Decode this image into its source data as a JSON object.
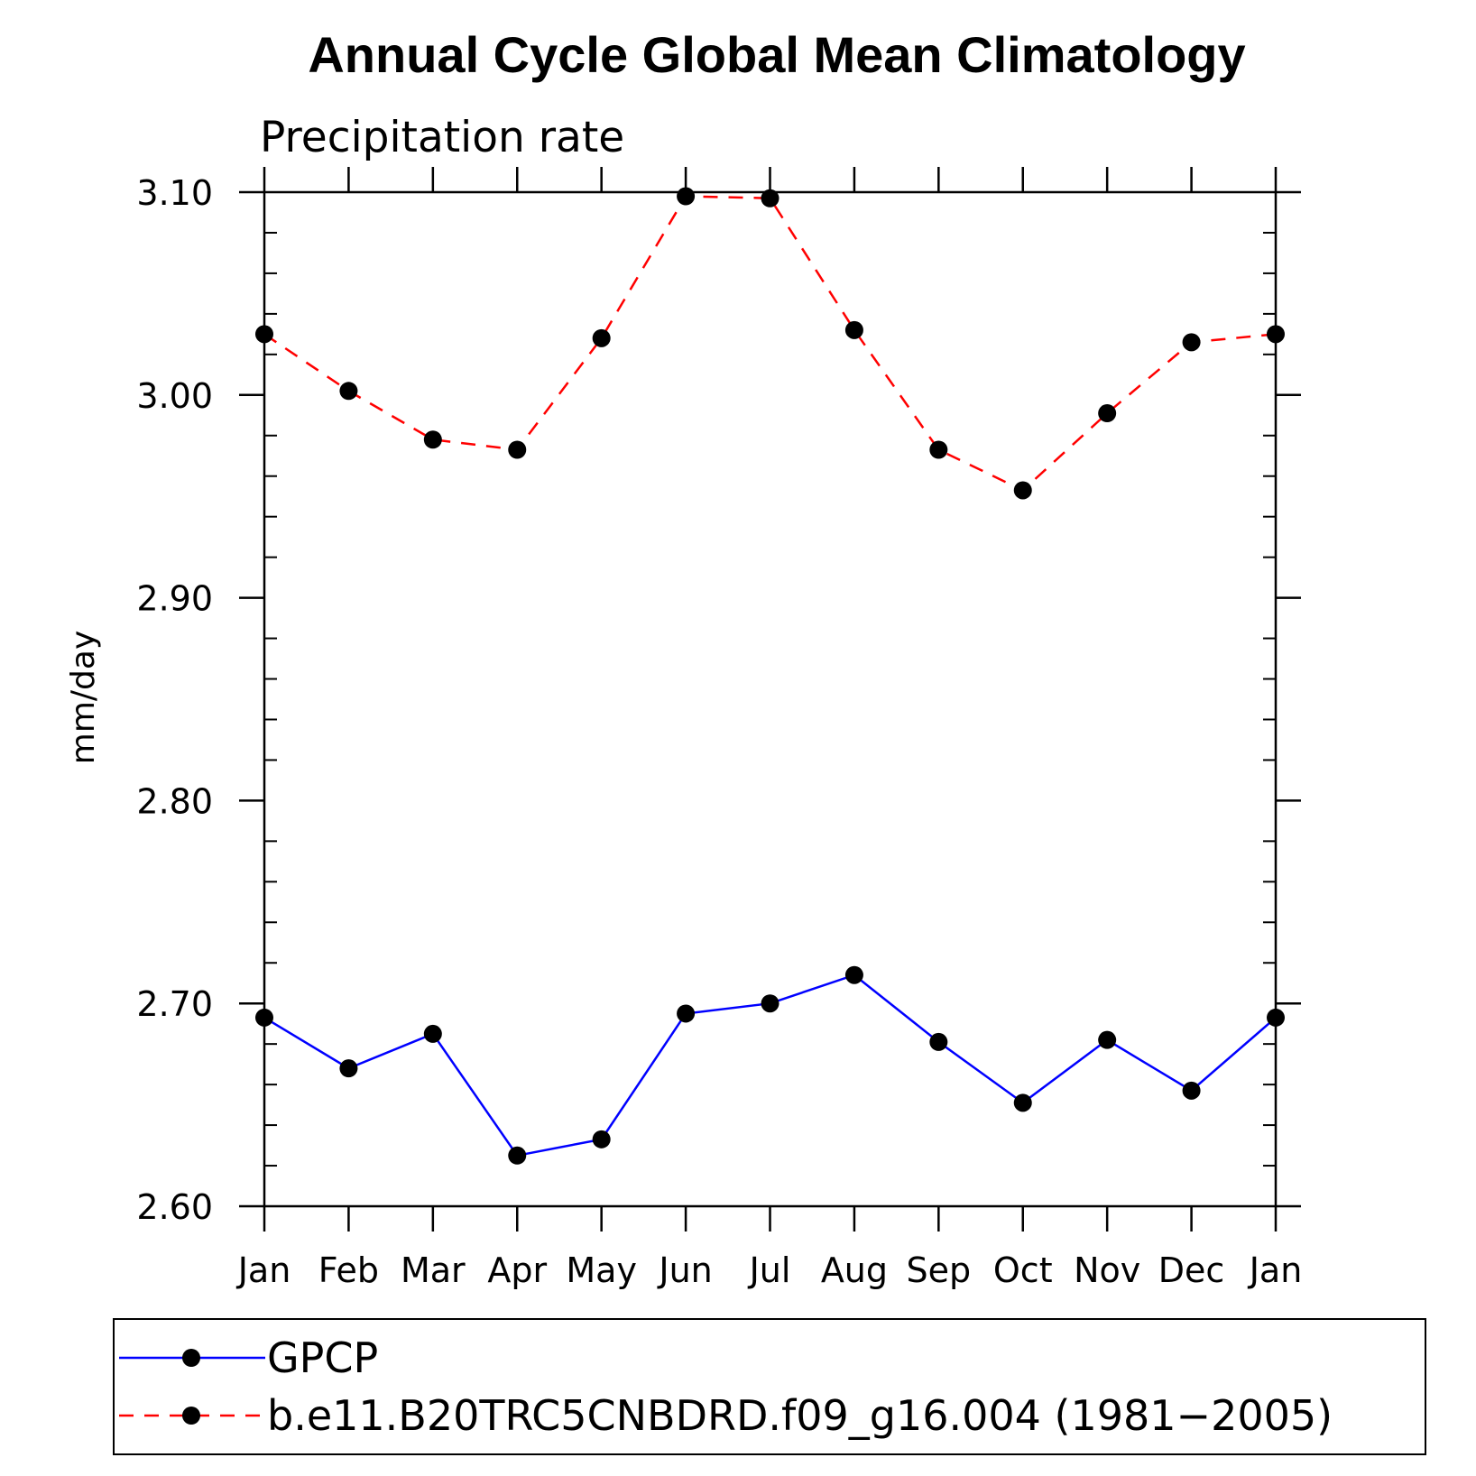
{
  "chart_data": {
    "type": "line",
    "title": "Annual Cycle Global Mean Climatology",
    "subtitle": "Precipitation rate",
    "ylabel": "mm/day",
    "xlabel": "",
    "categories": [
      "Jan",
      "Feb",
      "Mar",
      "Apr",
      "May",
      "Jun",
      "Jul",
      "Aug",
      "Sep",
      "Oct",
      "Nov",
      "Dec",
      "Jan"
    ],
    "ylim": [
      2.6,
      3.1
    ],
    "yticks": [
      "2.60",
      "2.70",
      "2.80",
      "2.90",
      "3.00",
      "3.10"
    ],
    "series": [
      {
        "name": "GPCP",
        "color": "#0000ff",
        "line_style": "solid",
        "marker": "filled-circle",
        "values": [
          2.693,
          2.668,
          2.685,
          2.625,
          2.633,
          2.695,
          2.7,
          2.714,
          2.681,
          2.651,
          2.682,
          2.657,
          2.693
        ]
      },
      {
        "name": "b.e11.B20TRC5CNBDRD.f09_g16.004 (1981−2005)",
        "color": "#ff0000",
        "line_style": "dashed",
        "marker": "filled-circle",
        "values": [
          3.03,
          3.002,
          2.978,
          2.973,
          3.028,
          3.098,
          3.097,
          3.032,
          2.973,
          2.953,
          2.991,
          3.026,
          3.03
        ]
      }
    ],
    "grid": false,
    "legend_position": "bottom"
  }
}
